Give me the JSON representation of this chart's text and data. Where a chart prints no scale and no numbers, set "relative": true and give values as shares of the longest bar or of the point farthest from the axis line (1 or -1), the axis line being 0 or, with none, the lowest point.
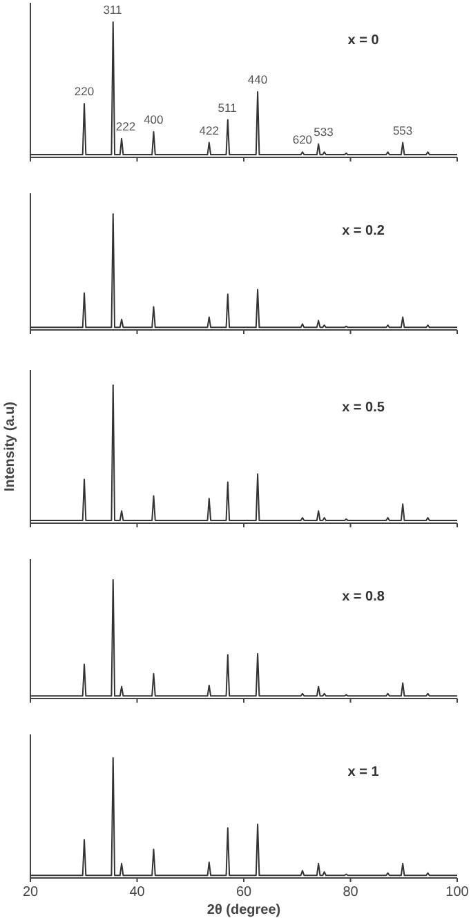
{
  "chart_data": [
    {
      "type": "line",
      "title": "x = 0",
      "relative": true,
      "xlim": [
        20,
        100
      ],
      "xticks": [
        20,
        40,
        60,
        80,
        100
      ],
      "tick_labels": false,
      "x": [
        20,
        29.8,
        30.1,
        30.4,
        35.2,
        35.5,
        35.8,
        36.8,
        37.1,
        37.4,
        42.8,
        43.1,
        43.4,
        53.2,
        53.5,
        53.8,
        56.7,
        57.0,
        57.3,
        62.3,
        62.6,
        62.9,
        70.7,
        71.0,
        71.3,
        73.7,
        74.0,
        74.3,
        74.8,
        75.1,
        75.4,
        78.9,
        79.2,
        79.5,
        86.7,
        87.0,
        87.3,
        89.5,
        89.8,
        90.1,
        94.2,
        94.5,
        94.8,
        100
      ],
      "series": [
        {
          "color": "#333333",
          "values": [
            0.01,
            0.01,
            0.39,
            0.01,
            0.01,
            1,
            0.01,
            0.01,
            0.13,
            0.01,
            0.01,
            0.18,
            0.01,
            0.01,
            0.1,
            0.01,
            0.01,
            0.27,
            0.01,
            0.01,
            0.48,
            0.01,
            0.01,
            0.03,
            0.01,
            0.01,
            0.09,
            0.01,
            0.01,
            0.03,
            0.01,
            0.01,
            0.02,
            0.01,
            0.01,
            0.03,
            0.01,
            0.01,
            0.1,
            0.01,
            0.01,
            0.03,
            0.01,
            0.01
          ]
        }
      ],
      "annotations": [
        {
          "text": "220",
          "x": 30.1,
          "y": 0.39
        },
        {
          "text": "311",
          "x": 35.5,
          "y": 1
        },
        {
          "text": "222",
          "x": 37.1,
          "y": 0.13
        },
        {
          "text": "400",
          "x": 43.1,
          "y": 0.18
        },
        {
          "text": "422",
          "x": 53.5,
          "y": 0.1
        },
        {
          "text": "511",
          "x": 57.0,
          "y": 0.27
        },
        {
          "text": "440",
          "x": 62.6,
          "y": 0.48
        },
        {
          "text": "620",
          "x": 71.0,
          "y": 0.03
        },
        {
          "text": "533",
          "x": 74.0,
          "y": 0.09
        },
        {
          "text": "553",
          "x": 89.8,
          "y": 0.1
        }
      ]
    },
    {
      "type": "line",
      "title": "x = 0.2",
      "relative": true,
      "xlim": [
        20,
        100
      ],
      "xticks": [
        20,
        40,
        60,
        80,
        100
      ],
      "tick_labels": false,
      "x": [
        20,
        29.8,
        30.1,
        30.4,
        35.2,
        35.5,
        35.8,
        36.8,
        37.1,
        37.4,
        42.8,
        43.1,
        43.4,
        53.2,
        53.5,
        53.8,
        56.7,
        57.0,
        57.3,
        62.3,
        62.6,
        62.9,
        70.7,
        71.0,
        71.3,
        73.7,
        74.0,
        74.3,
        74.8,
        75.1,
        75.4,
        78.9,
        79.2,
        79.5,
        86.7,
        87.0,
        87.3,
        89.5,
        89.8,
        90.1,
        94.2,
        94.5,
        94.8,
        100
      ],
      "series": [
        {
          "color": "#333333",
          "values": [
            0.01,
            0.01,
            0.31,
            0.01,
            0.01,
            1,
            0.01,
            0.01,
            0.08,
            0.01,
            0.01,
            0.19,
            0.01,
            0.01,
            0.1,
            0.01,
            0.01,
            0.3,
            0.01,
            0.01,
            0.34,
            0.01,
            0.01,
            0.04,
            0.01,
            0.01,
            0.07,
            0.01,
            0.01,
            0.03,
            0.01,
            0.01,
            0.02,
            0.01,
            0.01,
            0.03,
            0.01,
            0.01,
            0.1,
            0.01,
            0.01,
            0.03,
            0.01,
            0.01
          ]
        }
      ]
    },
    {
      "type": "line",
      "title": "x = 0.5",
      "ylabel": "Intensity  (a.u)",
      "relative": true,
      "xlim": [
        20,
        100
      ],
      "xticks": [
        20,
        40,
        60,
        80,
        100
      ],
      "tick_labels": false,
      "x": [
        20,
        29.8,
        30.1,
        30.4,
        35.2,
        35.5,
        35.8,
        36.8,
        37.1,
        37.4,
        42.8,
        43.1,
        43.4,
        53.2,
        53.5,
        53.8,
        56.7,
        57.0,
        57.3,
        62.3,
        62.6,
        62.9,
        70.7,
        71.0,
        71.3,
        73.7,
        74.0,
        74.3,
        74.8,
        75.1,
        75.4,
        78.9,
        79.2,
        79.5,
        86.7,
        87.0,
        87.3,
        89.5,
        89.8,
        90.1,
        94.2,
        94.5,
        94.8,
        100
      ],
      "series": [
        {
          "color": "#333333",
          "values": [
            0.01,
            0.01,
            0.31,
            0.01,
            0.01,
            1,
            0.01,
            0.01,
            0.08,
            0.01,
            0.01,
            0.19,
            0.01,
            0.01,
            0.17,
            0.01,
            0.01,
            0.29,
            0.01,
            0.01,
            0.35,
            0.01,
            0.01,
            0.03,
            0.01,
            0.01,
            0.08,
            0.01,
            0.01,
            0.03,
            0.01,
            0.01,
            0.02,
            0.01,
            0.01,
            0.03,
            0.01,
            0.01,
            0.13,
            0.01,
            0.01,
            0.03,
            0.01,
            0.01
          ]
        }
      ]
    },
    {
      "type": "line",
      "title": "x = 0.8",
      "relative": true,
      "xlim": [
        20,
        100
      ],
      "xticks": [
        20,
        40,
        60,
        80,
        100
      ],
      "tick_labels": false,
      "x": [
        20,
        29.8,
        30.1,
        30.4,
        35.2,
        35.5,
        35.8,
        36.8,
        37.1,
        37.4,
        42.8,
        43.1,
        43.4,
        53.2,
        53.5,
        53.8,
        56.7,
        57.0,
        57.3,
        62.3,
        62.6,
        62.9,
        70.7,
        71.0,
        71.3,
        73.7,
        74.0,
        74.3,
        74.8,
        75.1,
        75.4,
        78.9,
        79.2,
        79.5,
        86.7,
        87.0,
        87.3,
        89.5,
        89.8,
        90.1,
        94.2,
        94.5,
        94.8,
        100
      ],
      "series": [
        {
          "color": "#333333",
          "values": [
            0.01,
            0.01,
            0.28,
            0.01,
            0.01,
            1,
            0.01,
            0.01,
            0.09,
            0.01,
            0.01,
            0.2,
            0.01,
            0.01,
            0.1,
            0.01,
            0.01,
            0.36,
            0.01,
            0.01,
            0.37,
            0.01,
            0.01,
            0.03,
            0.01,
            0.01,
            0.09,
            0.01,
            0.01,
            0.03,
            0.01,
            0.01,
            0.02,
            0.01,
            0.01,
            0.03,
            0.01,
            0.01,
            0.12,
            0.01,
            0.01,
            0.03,
            0.01,
            0.01
          ]
        }
      ]
    },
    {
      "type": "line",
      "title": "x = 1",
      "xlabel": "2θ (degree)",
      "relative": true,
      "xlim": [
        20,
        100
      ],
      "xticks": [
        20,
        40,
        60,
        80,
        100
      ],
      "tick_labels": "x",
      "x": [
        20,
        29.8,
        30.1,
        30.4,
        35.2,
        35.5,
        35.8,
        36.8,
        37.1,
        37.4,
        42.8,
        43.1,
        43.4,
        53.2,
        53.5,
        53.8,
        56.7,
        57.0,
        57.3,
        62.3,
        62.6,
        62.9,
        70.7,
        71.0,
        71.3,
        73.7,
        74.0,
        74.3,
        74.8,
        75.1,
        75.4,
        78.9,
        79.2,
        79.5,
        86.7,
        87.0,
        87.3,
        89.5,
        89.8,
        90.1,
        94.2,
        94.5,
        94.8,
        100
      ],
      "series": [
        {
          "color": "#333333",
          "values": [
            0.01,
            0.01,
            0.31,
            0.01,
            0.01,
            1,
            0.01,
            0.01,
            0.11,
            0.01,
            0.01,
            0.23,
            0.01,
            0.01,
            0.12,
            0.01,
            0.01,
            0.41,
            0.01,
            0.01,
            0.44,
            0.01,
            0.01,
            0.05,
            0.01,
            0.01,
            0.11,
            0.01,
            0.01,
            0.04,
            0.01,
            0.01,
            0.02,
            0.01,
            0.01,
            0.03,
            0.01,
            0.01,
            0.11,
            0.01,
            0.01,
            0.03,
            0.01,
            0.01
          ]
        }
      ]
    }
  ]
}
